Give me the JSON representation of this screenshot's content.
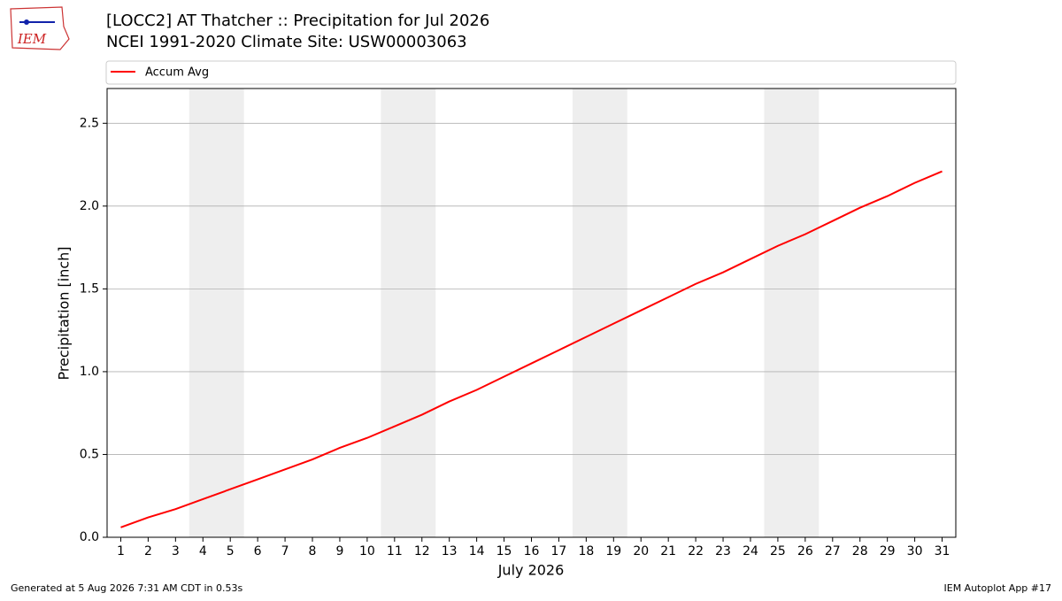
{
  "logo_text": "IEM",
  "footer_left": "Generated at 5 Aug 2026 7:31 AM CDT in 0.53s",
  "footer_right": "IEM Autoplot App #17",
  "chart_data": {
    "type": "line",
    "title": "[LOCC2] AT Thatcher :: Precipitation for Jul 2026",
    "subtitle": "NCEI 1991-2020 Climate Site: USW00003063",
    "x_label": "July 2026",
    "y_label": "Precipitation [inch]",
    "x": [
      1,
      2,
      3,
      4,
      5,
      6,
      7,
      8,
      9,
      10,
      11,
      12,
      13,
      14,
      15,
      16,
      17,
      18,
      19,
      20,
      21,
      22,
      23,
      24,
      25,
      26,
      27,
      28,
      29,
      30,
      31
    ],
    "series": [
      {
        "name": "Accum Avg",
        "color": "#ff0000",
        "values": [
          0.06,
          0.12,
          0.17,
          0.23,
          0.29,
          0.35,
          0.41,
          0.47,
          0.54,
          0.6,
          0.67,
          0.74,
          0.82,
          0.89,
          0.97,
          1.05,
          1.13,
          1.21,
          1.29,
          1.37,
          1.45,
          1.53,
          1.6,
          1.68,
          1.76,
          1.83,
          1.91,
          1.99,
          2.06,
          2.14,
          2.21
        ]
      }
    ],
    "xlim": [
      0.5,
      31.5
    ],
    "ylim": [
      0,
      2.71
    ],
    "xticks": [
      1,
      2,
      3,
      4,
      5,
      6,
      7,
      8,
      9,
      10,
      11,
      12,
      13,
      14,
      15,
      16,
      17,
      18,
      19,
      20,
      21,
      22,
      23,
      24,
      25,
      26,
      27,
      28,
      29,
      30,
      31
    ],
    "yticks": [
      {
        "value": 0,
        "label": "0.0"
      },
      {
        "value": 0.5,
        "label": "0.5"
      },
      {
        "value": 1,
        "label": "1.0"
      },
      {
        "value": 1.5,
        "label": "1.5"
      },
      {
        "value": 2,
        "label": "2.0"
      },
      {
        "value": 2.5,
        "label": "2.5"
      }
    ],
    "shaded_ranges": [
      [
        3.5,
        5.5
      ],
      [
        10.5,
        12.5
      ],
      [
        17.5,
        19.5
      ],
      [
        24.5,
        26.5
      ]
    ],
    "shade_color": "#eeeeee",
    "grid": "y",
    "legend": "top"
  }
}
